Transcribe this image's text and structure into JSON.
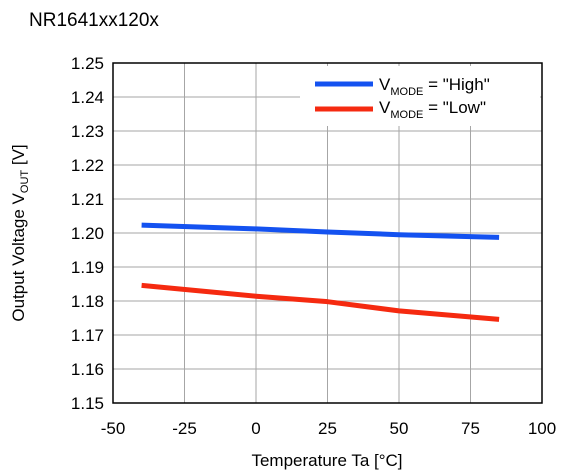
{
  "chart_data": {
    "type": "line",
    "title": "NR1641xx120x",
    "xlabel": "Temperature Ta [°C]",
    "ylabel": {
      "main": "Output Voltage V",
      "sub": "OUT",
      "unit": " [V]"
    },
    "xlim": [
      -50,
      100
    ],
    "ylim": [
      1.15,
      1.25
    ],
    "xticks": [
      -50,
      -25,
      0,
      25,
      50,
      75,
      100
    ],
    "yticks": [
      1.15,
      1.16,
      1.17,
      1.18,
      1.19,
      1.2,
      1.21,
      1.22,
      1.23,
      1.24,
      1.25
    ],
    "xtick_labels": [
      "-50",
      "-25",
      "0",
      "25",
      "50",
      "75",
      "100"
    ],
    "ytick_labels": [
      "1.15",
      "1.16",
      "1.17",
      "1.18",
      "1.19",
      "1.20",
      "1.21",
      "1.22",
      "1.23",
      "1.24",
      "1.25"
    ],
    "grid": true,
    "legend_position": "top-right",
    "series": [
      {
        "legend_main": "V",
        "legend_sub": "MODE",
        "legend_tail": " = \"High\"",
        "color": "#1452f0",
        "x": [
          -40,
          0,
          25,
          50,
          85
        ],
        "y": [
          1.2023,
          1.2012,
          1.2003,
          1.1995,
          1.1987
        ]
      },
      {
        "legend_main": "V",
        "legend_sub": "MODE",
        "legend_tail": " = \"Low\"",
        "color": "#f52a10",
        "x": [
          -40,
          0,
          25,
          50,
          85
        ],
        "y": [
          1.1846,
          1.1814,
          1.1798,
          1.1771,
          1.1746
        ]
      }
    ]
  }
}
